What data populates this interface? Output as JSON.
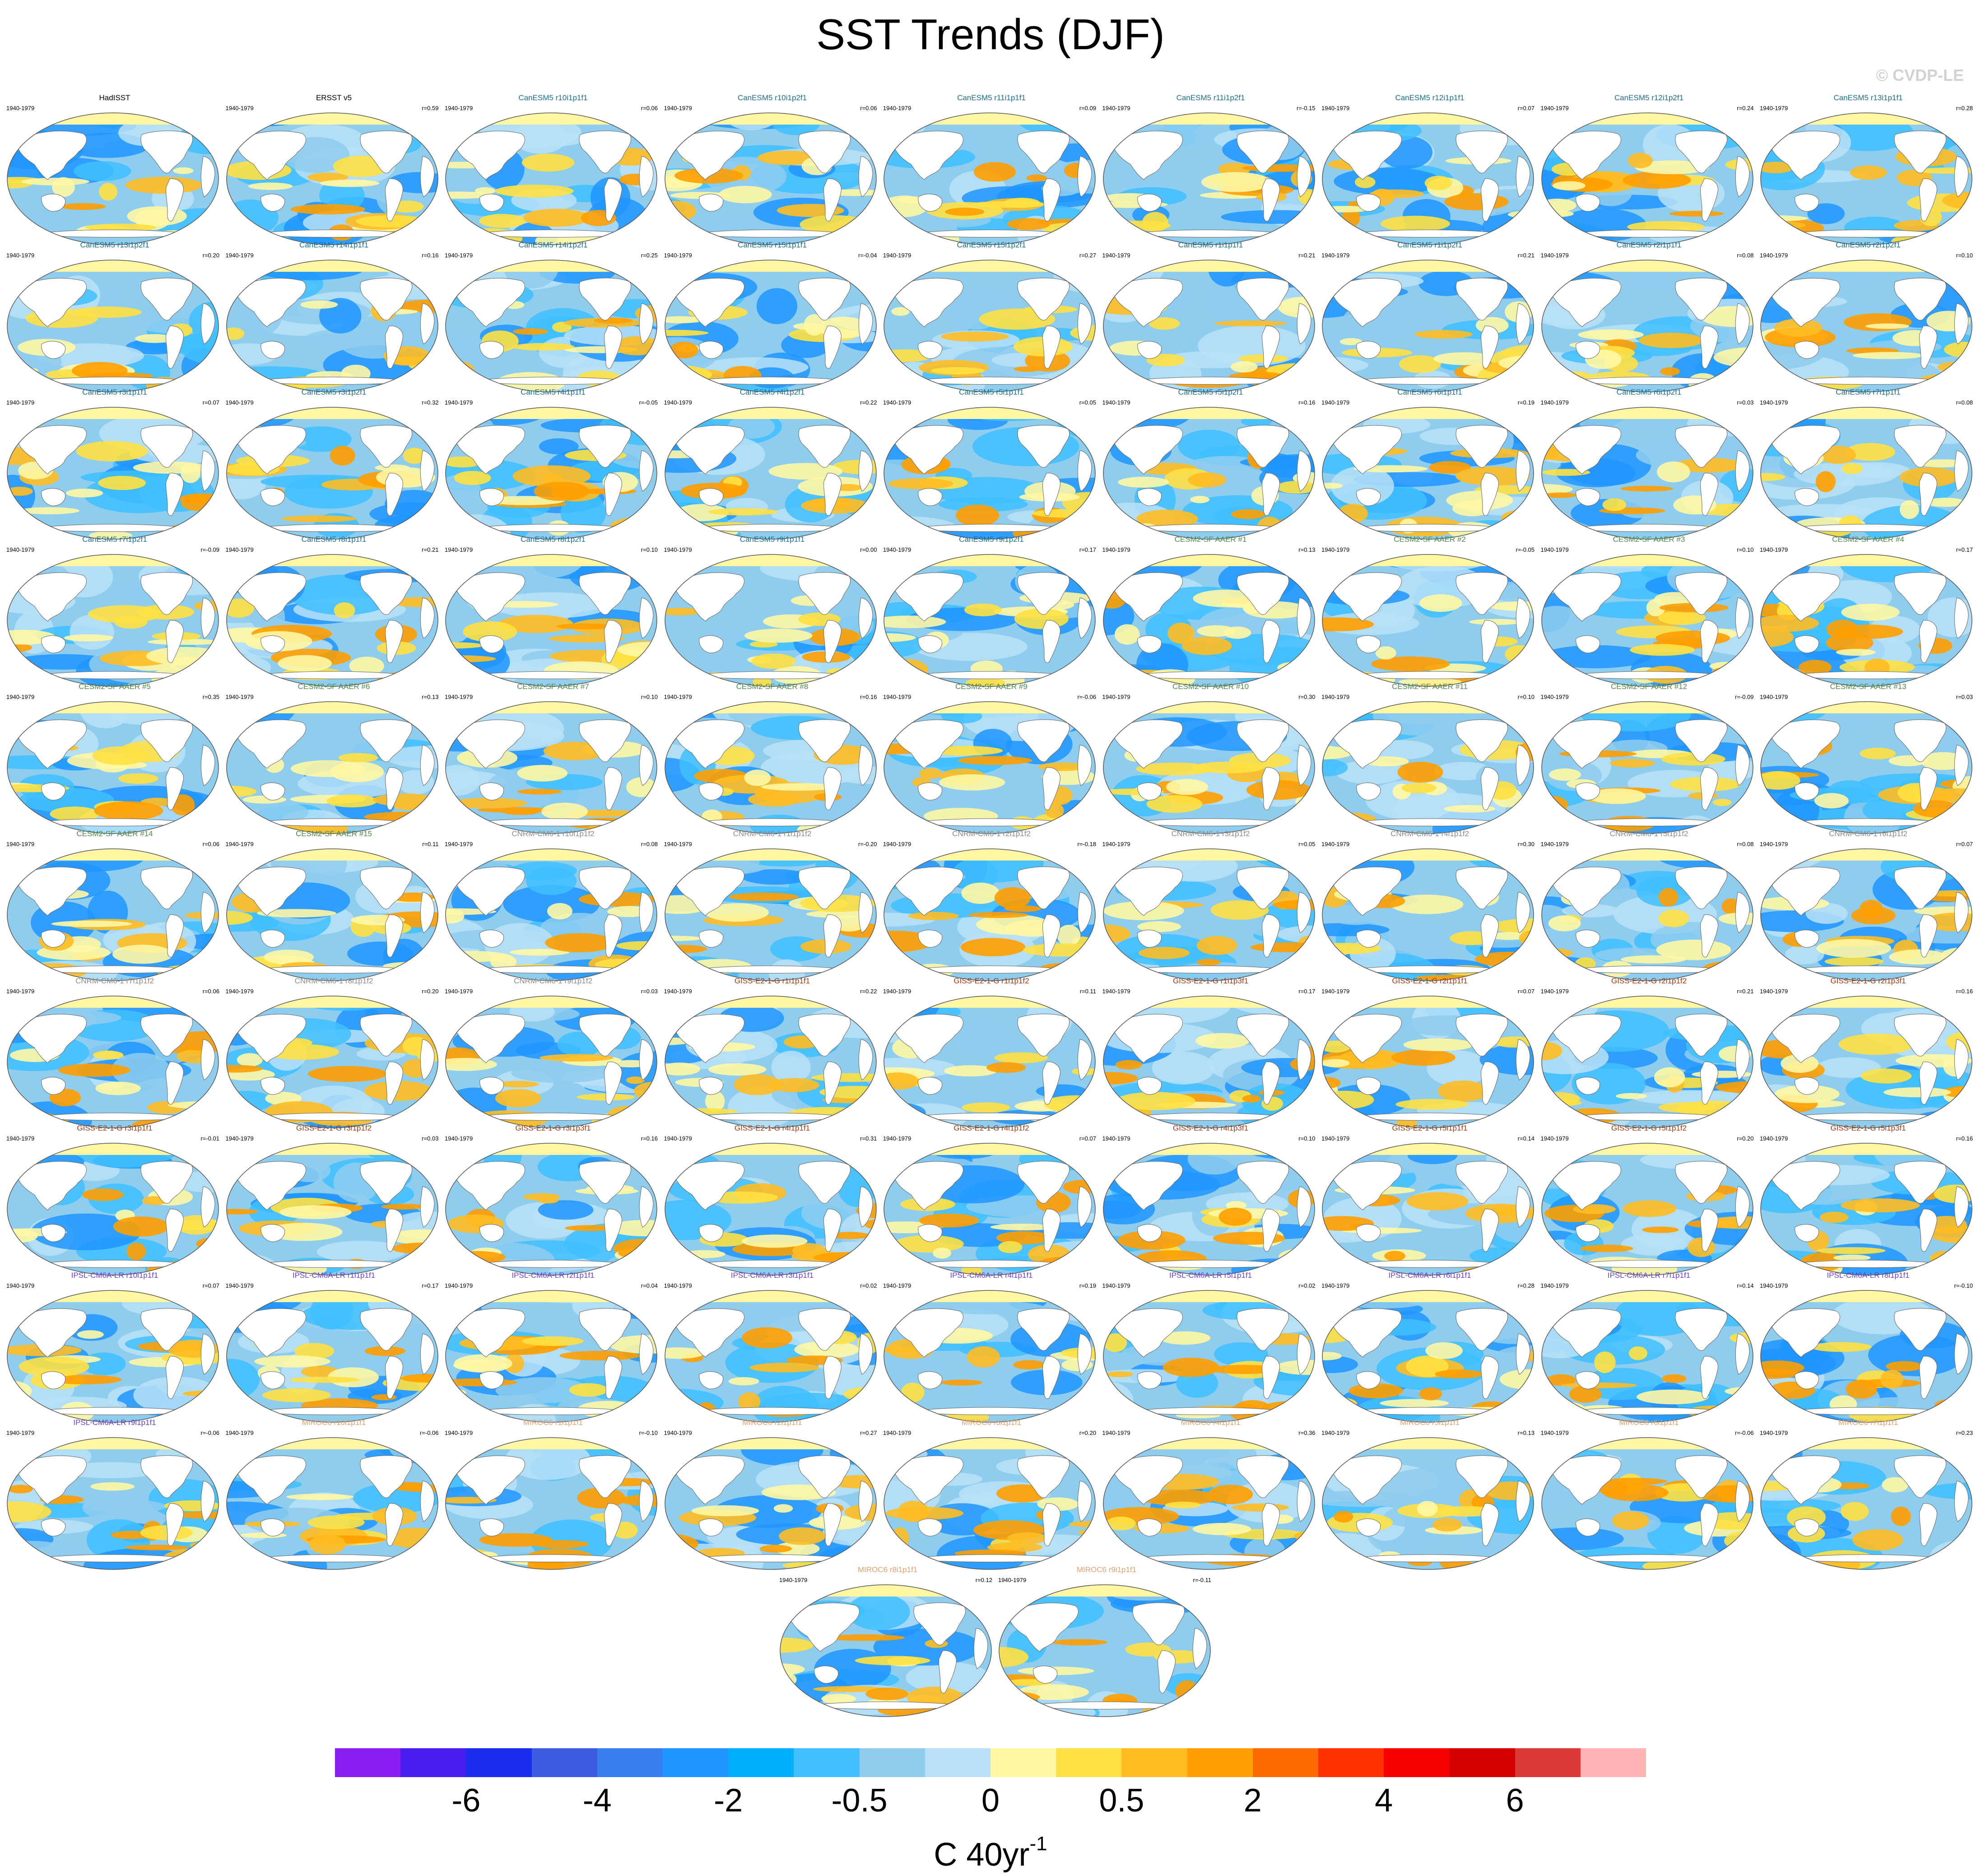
{
  "title": "SST Trends (DJF)",
  "copyright": "© CVDP-LE",
  "colors": {
    "HadISST": "#000000",
    "ERSST": "#000000",
    "CanESM5": "#1a6e8e",
    "CESM2": "#4f8a4a",
    "CNRM": "#8c8c8c",
    "GISS": "#9a3a12",
    "IPSL": "#6a3fd0",
    "MIROC6": "#e2a070"
  },
  "panels": [
    {
      "name": "HadISST",
      "period": "1940-1979",
      "r": "",
      "group": "HadISST"
    },
    {
      "name": "ERSST v5",
      "period": "1940-1979",
      "r": "r=0.59",
      "group": "ERSST"
    },
    {
      "name": "CanESM5 r10i1p1f1",
      "period": "1940-1979",
      "r": "r=0.06",
      "group": "CanESM5"
    },
    {
      "name": "CanESM5 r10i1p2f1",
      "period": "1940-1979",
      "r": "r=0.06",
      "group": "CanESM5"
    },
    {
      "name": "CanESM5 r11i1p1f1",
      "period": "1940-1979",
      "r": "r=0.09",
      "group": "CanESM5"
    },
    {
      "name": "CanESM5 r11i1p2f1",
      "period": "1940-1979",
      "r": "r=-0.15",
      "group": "CanESM5"
    },
    {
      "name": "CanESM5 r12i1p1f1",
      "period": "1940-1979",
      "r": "r=0.07",
      "group": "CanESM5"
    },
    {
      "name": "CanESM5 r12i1p2f1",
      "period": "1940-1979",
      "r": "r=0.24",
      "group": "CanESM5"
    },
    {
      "name": "CanESM5 r13i1p1f1",
      "period": "1940-1979",
      "r": "r=0.28",
      "group": "CanESM5"
    },
    {
      "name": "CanESM5 r13i1p2f1",
      "period": "1940-1979",
      "r": "r=0.20",
      "group": "CanESM5"
    },
    {
      "name": "CanESM5 r14i1p1f1",
      "period": "1940-1979",
      "r": "r=0.16",
      "group": "CanESM5"
    },
    {
      "name": "CanESM5 r14i1p2f1",
      "period": "1940-1979",
      "r": "r=0.25",
      "group": "CanESM5"
    },
    {
      "name": "CanESM5 r15i1p1f1",
      "period": "1940-1979",
      "r": "r=-0.04",
      "group": "CanESM5"
    },
    {
      "name": "CanESM5 r15i1p2f1",
      "period": "1940-1979",
      "r": "r=0.27",
      "group": "CanESM5"
    },
    {
      "name": "CanESM5 r1i1p1f1",
      "period": "1940-1979",
      "r": "r=0.21",
      "group": "CanESM5"
    },
    {
      "name": "CanESM5 r1i1p2f1",
      "period": "1940-1979",
      "r": "r=0.21",
      "group": "CanESM5"
    },
    {
      "name": "CanESM5 r2i1p1f1",
      "period": "1940-1979",
      "r": "r=0.08",
      "group": "CanESM5"
    },
    {
      "name": "CanESM5 r2i1p2f1",
      "period": "1940-1979",
      "r": "r=0.10",
      "group": "CanESM5"
    },
    {
      "name": "CanESM5 r3i1p1f1",
      "period": "1940-1979",
      "r": "r=0.07",
      "group": "CanESM5"
    },
    {
      "name": "CanESM5 r3i1p2f1",
      "period": "1940-1979",
      "r": "r=0.32",
      "group": "CanESM5"
    },
    {
      "name": "CanESM5 r4i1p1f1",
      "period": "1940-1979",
      "r": "r=-0.05",
      "group": "CanESM5"
    },
    {
      "name": "CanESM5 r4i1p2f1",
      "period": "1940-1979",
      "r": "r=0.22",
      "group": "CanESM5"
    },
    {
      "name": "CanESM5 r5i1p1f1",
      "period": "1940-1979",
      "r": "r=0.05",
      "group": "CanESM5"
    },
    {
      "name": "CanESM5 r5i1p2f1",
      "period": "1940-1979",
      "r": "r=0.16",
      "group": "CanESM5"
    },
    {
      "name": "CanESM5 r6i1p1f1",
      "period": "1940-1979",
      "r": "r=0.19",
      "group": "CanESM5"
    },
    {
      "name": "CanESM5 r6i1p2f1",
      "period": "1940-1979",
      "r": "r=0.03",
      "group": "CanESM5"
    },
    {
      "name": "CanESM5 r7i1p1f1",
      "period": "1940-1979",
      "r": "r=0.08",
      "group": "CanESM5"
    },
    {
      "name": "CanESM5 r7i1p2f1",
      "period": "1940-1979",
      "r": "r=-0.09",
      "group": "CanESM5"
    },
    {
      "name": "CanESM5 r8i1p1f1",
      "period": "1940-1979",
      "r": "r=0.21",
      "group": "CanESM5"
    },
    {
      "name": "CanESM5 r8i1p2f1",
      "period": "1940-1979",
      "r": "r=0.10",
      "group": "CanESM5"
    },
    {
      "name": "CanESM5 r9i1p1f1",
      "period": "1940-1979",
      "r": "r=0.00",
      "group": "CanESM5"
    },
    {
      "name": "CanESM5 r9i1p2f1",
      "period": "1940-1979",
      "r": "r=0.17",
      "group": "CanESM5"
    },
    {
      "name": "CESM2-SF AAER #1",
      "period": "1940-1979",
      "r": "r=0.13",
      "group": "CESM2"
    },
    {
      "name": "CESM2-SF AAER #2",
      "period": "1940-1979",
      "r": "r=-0.05",
      "group": "CESM2"
    },
    {
      "name": "CESM2-SF AAER #3",
      "period": "1940-1979",
      "r": "r=0.10",
      "group": "CESM2"
    },
    {
      "name": "CESM2-SF AAER #4",
      "period": "1940-1979",
      "r": "r=0.17",
      "group": "CESM2"
    },
    {
      "name": "CESM2-SF AAER #5",
      "period": "1940-1979",
      "r": "r=0.35",
      "group": "CESM2"
    },
    {
      "name": "CESM2-SF AAER #6",
      "period": "1940-1979",
      "r": "r=0.13",
      "group": "CESM2"
    },
    {
      "name": "CESM2-SF AAER #7",
      "period": "1940-1979",
      "r": "r=0.10",
      "group": "CESM2"
    },
    {
      "name": "CESM2-SF AAER #8",
      "period": "1940-1979",
      "r": "r=0.16",
      "group": "CESM2"
    },
    {
      "name": "CESM2-SF AAER #9",
      "period": "1940-1979",
      "r": "r=-0.06",
      "group": "CESM2"
    },
    {
      "name": "CESM2-SF AAER #10",
      "period": "1940-1979",
      "r": "r=0.30",
      "group": "CESM2"
    },
    {
      "name": "CESM2-SF AAER #11",
      "period": "1940-1979",
      "r": "r=0.10",
      "group": "CESM2"
    },
    {
      "name": "CESM2-SF AAER #12",
      "period": "1940-1979",
      "r": "r=-0.09",
      "group": "CESM2"
    },
    {
      "name": "CESM2-SF AAER #13",
      "period": "1940-1979",
      "r": "r=0.03",
      "group": "CESM2"
    },
    {
      "name": "CESM2-SF AAER #14",
      "period": "1940-1979",
      "r": "r=0.06",
      "group": "CESM2"
    },
    {
      "name": "CESM2-SF AAER #15",
      "period": "1940-1979",
      "r": "r=0.11",
      "group": "CESM2"
    },
    {
      "name": "CNRM-CM6-1 r10i1p1f2",
      "period": "1940-1979",
      "r": "r=0.08",
      "group": "CNRM"
    },
    {
      "name": "CNRM-CM6-1 r1i1p1f2",
      "period": "1940-1979",
      "r": "r=-0.20",
      "group": "CNRM"
    },
    {
      "name": "CNRM-CM6-1 r2i1p1f2",
      "period": "1940-1979",
      "r": "r=-0.18",
      "group": "CNRM"
    },
    {
      "name": "CNRM-CM6-1 r3i1p1f2",
      "period": "1940-1979",
      "r": "r=0.05",
      "group": "CNRM"
    },
    {
      "name": "CNRM-CM6-1 r4i1p1f2",
      "period": "1940-1979",
      "r": "r=0.30",
      "group": "CNRM"
    },
    {
      "name": "CNRM-CM6-1 r5i1p1f2",
      "period": "1940-1979",
      "r": "r=0.08",
      "group": "CNRM"
    },
    {
      "name": "CNRM-CM6-1 r6i1p1f2",
      "period": "1940-1979",
      "r": "r=0.07",
      "group": "CNRM"
    },
    {
      "name": "CNRM-CM6-1 r7i1p1f2",
      "period": "1940-1979",
      "r": "r=0.06",
      "group": "CNRM"
    },
    {
      "name": "CNRM-CM6-1 r8i1p1f2",
      "period": "1940-1979",
      "r": "r=0.20",
      "group": "CNRM"
    },
    {
      "name": "CNRM-CM6-1 r9i1p1f2",
      "period": "1940-1979",
      "r": "r=0.03",
      "group": "CNRM"
    },
    {
      "name": "GISS-E2-1-G r1i1p1f1",
      "period": "1940-1979",
      "r": "r=0.22",
      "group": "GISS"
    },
    {
      "name": "GISS-E2-1-G r1i1p1f2",
      "period": "1940-1979",
      "r": "r=0.11",
      "group": "GISS"
    },
    {
      "name": "GISS-E2-1-G r1i1p3f1",
      "period": "1940-1979",
      "r": "r=0.17",
      "group": "GISS"
    },
    {
      "name": "GISS-E2-1-G r2i1p1f1",
      "period": "1940-1979",
      "r": "r=0.07",
      "group": "GISS"
    },
    {
      "name": "GISS-E2-1-G r2i1p1f2",
      "period": "1940-1979",
      "r": "r=0.21",
      "group": "GISS"
    },
    {
      "name": "GISS-E2-1-G r2i1p3f1",
      "period": "1940-1979",
      "r": "r=0.16",
      "group": "GISS"
    },
    {
      "name": "GISS-E2-1-G r3i1p1f1",
      "period": "1940-1979",
      "r": "r=-0.01",
      "group": "GISS"
    },
    {
      "name": "GISS-E2-1-G r3i1p1f2",
      "period": "1940-1979",
      "r": "r=0.03",
      "group": "GISS"
    },
    {
      "name": "GISS-E2-1-G r3i1p3f1",
      "period": "1940-1979",
      "r": "r=0.16",
      "group": "GISS"
    },
    {
      "name": "GISS-E2-1-G r4i1p1f1",
      "period": "1940-1979",
      "r": "r=0.31",
      "group": "GISS"
    },
    {
      "name": "GISS-E2-1-G r4i1p1f2",
      "period": "1940-1979",
      "r": "r=0.07",
      "group": "GISS"
    },
    {
      "name": "GISS-E2-1-G r4i1p3f1",
      "period": "1940-1979",
      "r": "r=0.10",
      "group": "GISS"
    },
    {
      "name": "GISS-E2-1-G r5i1p1f1",
      "period": "1940-1979",
      "r": "r=0.14",
      "group": "GISS"
    },
    {
      "name": "GISS-E2-1-G r5i1p1f2",
      "period": "1940-1979",
      "r": "r=0.20",
      "group": "GISS"
    },
    {
      "name": "GISS-E2-1-G r5i1p3f1",
      "period": "1940-1979",
      "r": "r=0.16",
      "group": "GISS"
    },
    {
      "name": "IPSL-CM6A-LR r10i1p1f1",
      "period": "1940-1979",
      "r": "r=0.07",
      "group": "IPSL"
    },
    {
      "name": "IPSL-CM6A-LR r1i1p1f1",
      "period": "1940-1979",
      "r": "r=0.17",
      "group": "IPSL"
    },
    {
      "name": "IPSL-CM6A-LR r2i1p1f1",
      "period": "1940-1979",
      "r": "r=0.04",
      "group": "IPSL"
    },
    {
      "name": "IPSL-CM6A-LR r3i1p1f1",
      "period": "1940-1979",
      "r": "r=0.02",
      "group": "IPSL"
    },
    {
      "name": "IPSL-CM6A-LR r4i1p1f1",
      "period": "1940-1979",
      "r": "r=0.19",
      "group": "IPSL"
    },
    {
      "name": "IPSL-CM6A-LR r5i1p1f1",
      "period": "1940-1979",
      "r": "r=0.02",
      "group": "IPSL"
    },
    {
      "name": "IPSL-CM6A-LR r6i1p1f1",
      "period": "1940-1979",
      "r": "r=0.28",
      "group": "IPSL"
    },
    {
      "name": "IPSL-CM6A-LR r7i1p1f1",
      "period": "1940-1979",
      "r": "r=0.14",
      "group": "IPSL"
    },
    {
      "name": "IPSL-CM6A-LR r8i1p1f1",
      "period": "1940-1979",
      "r": "r=-0.10",
      "group": "IPSL"
    },
    {
      "name": "IPSL-CM6A-LR r9i1p1f1",
      "period": "1940-1979",
      "r": "r=-0.06",
      "group": "IPSL"
    },
    {
      "name": "MIROC6 r10i1p1f1",
      "period": "1940-1979",
      "r": "r=-0.06",
      "group": "MIROC6"
    },
    {
      "name": "MIROC6 r1i1p1f1",
      "period": "1940-1979",
      "r": "r=-0.10",
      "group": "MIROC6"
    },
    {
      "name": "MIROC6 r2i1p1f1",
      "period": "1940-1979",
      "r": "r=0.27",
      "group": "MIROC6"
    },
    {
      "name": "MIROC6 r3i1p1f1",
      "period": "1940-1979",
      "r": "r=0.20",
      "group": "MIROC6"
    },
    {
      "name": "MIROC6 r4i1p1f1",
      "period": "1940-1979",
      "r": "r=0.36",
      "group": "MIROC6"
    },
    {
      "name": "MIROC6 r5i1p1f1",
      "period": "1940-1979",
      "r": "r=0.13",
      "group": "MIROC6"
    },
    {
      "name": "MIROC6 r6i1p1f1",
      "period": "1940-1979",
      "r": "r=-0.06",
      "group": "MIROC6"
    },
    {
      "name": "MIROC6 r7i1p1f1",
      "period": "1940-1979",
      "r": "r=0.23",
      "group": "MIROC6"
    },
    {
      "name": "MIROC6 r8i1p1f1",
      "period": "1940-1979",
      "r": "r=0.12",
      "group": "MIROC6"
    },
    {
      "name": "MIROC6 r9i1p1f1",
      "period": "1940-1979",
      "r": "r=-0.11",
      "group": "MIROC6"
    }
  ],
  "colorbar": {
    "colors": [
      "#8a1ef0",
      "#4b1ef0",
      "#1b2ef0",
      "#3c5cdf",
      "#3a7ff0",
      "#1e95ff",
      "#00b0ff",
      "#40c0ff",
      "#8ecdee",
      "#b9e0f7",
      "#fff7a4",
      "#ffe143",
      "#ffbd22",
      "#ff9e00",
      "#ff6a00",
      "#ff3200",
      "#f70000",
      "#d40000",
      "#dc3939",
      "#ffb3b3"
    ],
    "tick_labels": [
      "-6",
      "-4",
      "-2",
      "-0.5",
      "0",
      "0.5",
      "2",
      "4",
      "6"
    ],
    "units_base": "C 40yr",
    "units_exp": "-1"
  }
}
